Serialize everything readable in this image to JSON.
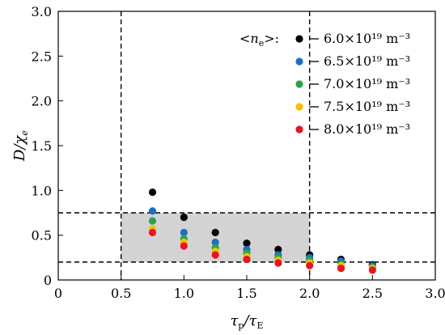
{
  "chart_data": {
    "type": "scatter",
    "title": "",
    "xlabel": "τp/τE",
    "ylabel": "D/χe",
    "xlim": [
      0,
      3.0
    ],
    "ylim": [
      0,
      3.0
    ],
    "x_ticks": [
      "0",
      "0.5",
      "1.0",
      "1.5",
      "2.0",
      "2.5",
      "3.0"
    ],
    "y_ticks": [
      "0",
      "0.5",
      "1.0",
      "1.5",
      "2.0",
      "2.5",
      "3.0"
    ],
    "grid": false,
    "legend_placement": "top-right",
    "legend_title": "<ne>:",
    "shaded_region": {
      "x": [
        0.5,
        2.0
      ],
      "y": [
        0.2,
        0.75
      ],
      "color": "#d3d3d3"
    },
    "reference_lines": {
      "vertical": [
        0.5,
        2.0
      ],
      "horizontal": [
        0.2,
        0.75
      ]
    },
    "x": [
      0.75,
      1.0,
      1.25,
      1.5,
      1.75,
      2.0,
      2.25,
      2.5
    ],
    "series": [
      {
        "name": "6.0×10¹⁹ m⁻³",
        "color": "#000000",
        "values": [
          0.98,
          0.7,
          0.53,
          0.41,
          0.34,
          0.28,
          0.23,
          0.17
        ]
      },
      {
        "name": "6.5×10¹⁹ m⁻³",
        "color": "#1f6fc0",
        "values": [
          0.77,
          0.53,
          0.42,
          0.34,
          0.28,
          0.25,
          0.21,
          0.16
        ]
      },
      {
        "name": "7.0×10¹⁹ m⁻³",
        "color": "#2ca34a",
        "values": [
          0.66,
          0.46,
          0.36,
          0.3,
          0.25,
          0.22,
          0.18,
          0.14
        ]
      },
      {
        "name": "7.5×10¹⁹ m⁻³",
        "color": "#f5c000",
        "values": [
          0.57,
          0.42,
          0.32,
          0.26,
          0.22,
          0.19,
          0.16,
          0.13
        ]
      },
      {
        "name": "8.0×10¹⁹ m⁻³",
        "color": "#e8141e",
        "values": [
          0.53,
          0.38,
          0.28,
          0.23,
          0.19,
          0.16,
          0.13,
          0.11
        ]
      }
    ]
  }
}
